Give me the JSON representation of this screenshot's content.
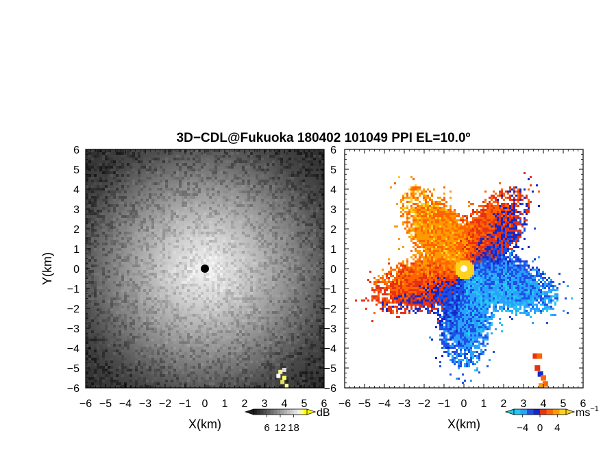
{
  "chart_data": [
    {
      "type": "heatmap",
      "title": "3D−CDL@Fukuoka 180402 101049 PPI EL=10.0º",
      "product": "reflectivity",
      "xlabel": "X(km)",
      "ylabel": "Y(km)",
      "xlim": [
        -6,
        6
      ],
      "ylim": [
        -6,
        6
      ],
      "xticks": [
        "−6",
        "−5",
        "−4",
        "−3",
        "−2",
        "−1",
        "0",
        "1",
        "2",
        "3",
        "4",
        "5",
        "6"
      ],
      "yticks": [
        "6",
        "5",
        "4",
        "3",
        "2",
        "1",
        "0",
        "−1",
        "−2",
        "−3",
        "−4",
        "−5",
        "−6"
      ],
      "colormap": "grayscale",
      "colorbar": {
        "ticks": [
          "6",
          "12",
          "18"
        ],
        "tick_values": [
          6,
          12,
          18
        ],
        "range": [
          0,
          24
        ],
        "unit": "dB"
      },
      "radar_center": [
        0,
        0
      ]
    },
    {
      "type": "heatmap",
      "product": "doppler_velocity",
      "xlabel": "X(km)",
      "xlim": [
        -6,
        6
      ],
      "ylim": [
        -6,
        6
      ],
      "xticks": [
        "−6",
        "−5",
        "−4",
        "−3",
        "−2",
        "−1",
        "0",
        "1",
        "2",
        "3",
        "4",
        "5",
        "6"
      ],
      "yticks": [
        "6",
        "5",
        "4",
        "3",
        "2",
        "1",
        "0",
        "−1",
        "−2",
        "−3",
        "−4",
        "−5",
        "−6"
      ],
      "colormap": "cyan-blue-red-orange-yellow",
      "colorbar": {
        "ticks": [
          "−4",
          "0",
          "4"
        ],
        "tick_values": [
          -4,
          0,
          4
        ],
        "range": [
          -6,
          6
        ],
        "unit": "ms",
        "unit_sup": "−1"
      },
      "radar_center": [
        0,
        0
      ],
      "data_radius_km": 4.5
    }
  ]
}
